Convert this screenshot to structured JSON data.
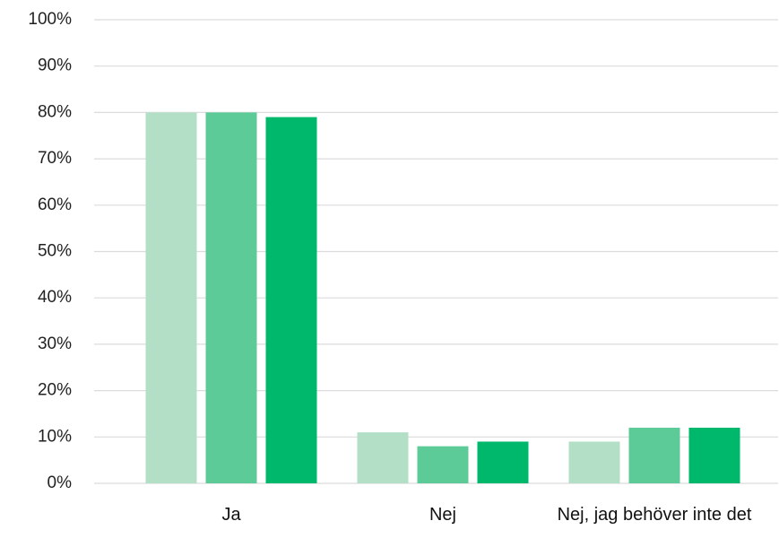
{
  "chart_data": {
    "type": "bar",
    "categories": [
      "Ja",
      "Nej",
      "Nej, jag behöver inte det"
    ],
    "series": [
      {
        "color": "#b3dfc6",
        "values": [
          80,
          11,
          9
        ]
      },
      {
        "color": "#5ccb98",
        "values": [
          80,
          8,
          12
        ]
      },
      {
        "color": "#00b86b",
        "values": [
          79,
          9,
          12
        ]
      }
    ],
    "ylim": [
      0,
      100
    ],
    "yticks": [
      {
        "value": 0,
        "label": "0%"
      },
      {
        "value": 10,
        "label": "10%"
      },
      {
        "value": 20,
        "label": "20%"
      },
      {
        "value": 30,
        "label": "30%"
      },
      {
        "value": 40,
        "label": "40%"
      },
      {
        "value": 50,
        "label": "50%"
      },
      {
        "value": 60,
        "label": "60%"
      },
      {
        "value": 70,
        "label": "70%"
      },
      {
        "value": 80,
        "label": "80%"
      },
      {
        "value": 90,
        "label": "90%"
      },
      {
        "value": 100,
        "label": "100%"
      }
    ],
    "grid": true
  }
}
